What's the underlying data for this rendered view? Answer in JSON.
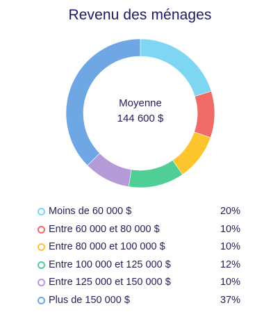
{
  "chart_data": {
    "type": "pie",
    "title": "Revenu des ménages",
    "center_label": "Moyenne",
    "center_value": "144 600 $",
    "categories": [
      "Moins de 60 000 $",
      "Entre 60 000 et 80 000 $",
      "Entre 80 000 et 100 000 $",
      "Entre 100 000 et 125 000 $",
      "Entre 125 000 et 150 000 $",
      "Plus de 150 000 $"
    ],
    "values": [
      20,
      10,
      10,
      12,
      10,
      37
    ],
    "value_labels": [
      "20%",
      "10%",
      "10%",
      "12%",
      "10%",
      "37%"
    ],
    "colors": [
      "#7ed6f2",
      "#ef6b68",
      "#fcc52d",
      "#4fcf96",
      "#b49ad6",
      "#6fa7e4"
    ],
    "legend_position": "bottom"
  }
}
